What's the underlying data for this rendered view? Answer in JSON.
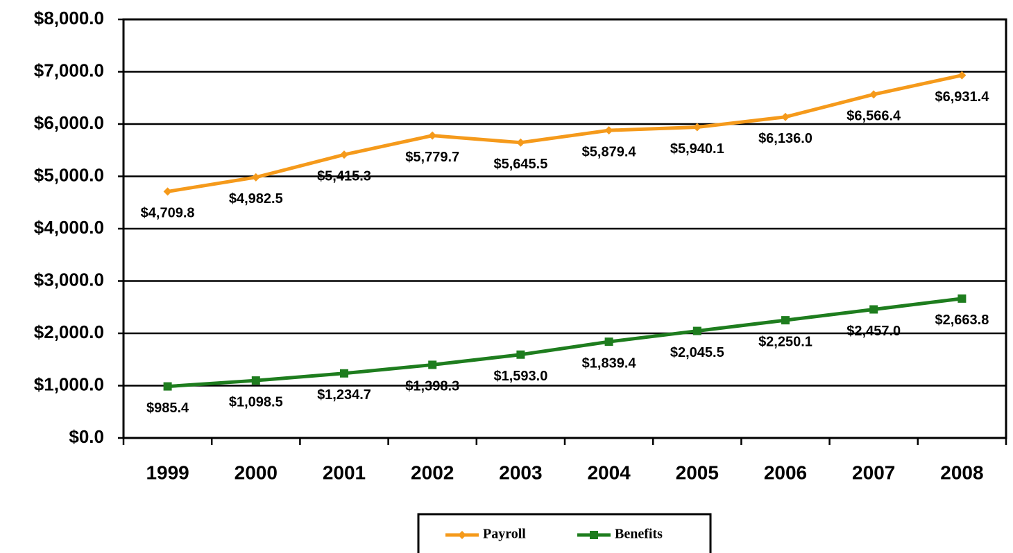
{
  "chart_data": {
    "type": "line",
    "categories": [
      "1999",
      "2000",
      "2001",
      "2002",
      "2003",
      "2004",
      "2005",
      "2006",
      "2007",
      "2008"
    ],
    "series": [
      {
        "name": "Payroll",
        "color": "#f59a1b",
        "values": [
          4709.8,
          4982.5,
          5415.3,
          5779.7,
          5645.5,
          5879.4,
          5940.1,
          6136.0,
          6566.4,
          6931.4
        ],
        "value_labels": [
          "$4,709.8",
          "$4,982.5",
          "$5,415.3",
          "$5,779.7",
          "$5,645.5",
          "$5,879.4",
          "$5,940.1",
          "$6,136.0",
          "$6,566.4",
          "$6,931.4"
        ]
      },
      {
        "name": "Benefits",
        "color": "#1e7d1e",
        "values": [
          985.4,
          1098.5,
          1234.7,
          1398.3,
          1593.0,
          1839.4,
          2045.5,
          2250.1,
          2457.0,
          2663.8
        ],
        "value_labels": [
          "$985.4",
          "$1,098.5",
          "$1,234.7",
          "$1,398.3",
          "$1,593.0",
          "$1,839.4",
          "$2,045.5",
          "$2,250.1",
          "$2,457.0",
          "$2,663.8"
        ]
      }
    ],
    "ylim": [
      0,
      8000
    ],
    "yticks": [
      {
        "value": 0,
        "label": "$0.0"
      },
      {
        "value": 1000,
        "label": "$1,000.0"
      },
      {
        "value": 2000,
        "label": "$2,000.0"
      },
      {
        "value": 3000,
        "label": "$3,000.0"
      },
      {
        "value": 4000,
        "label": "$4,000.0"
      },
      {
        "value": 5000,
        "label": "$5,000.0"
      },
      {
        "value": 6000,
        "label": "$6,000.0"
      },
      {
        "value": 7000,
        "label": "$7,000.0"
      },
      {
        "value": 8000,
        "label": "$8,000.0"
      }
    ],
    "grid": true,
    "legend": "bottom"
  }
}
